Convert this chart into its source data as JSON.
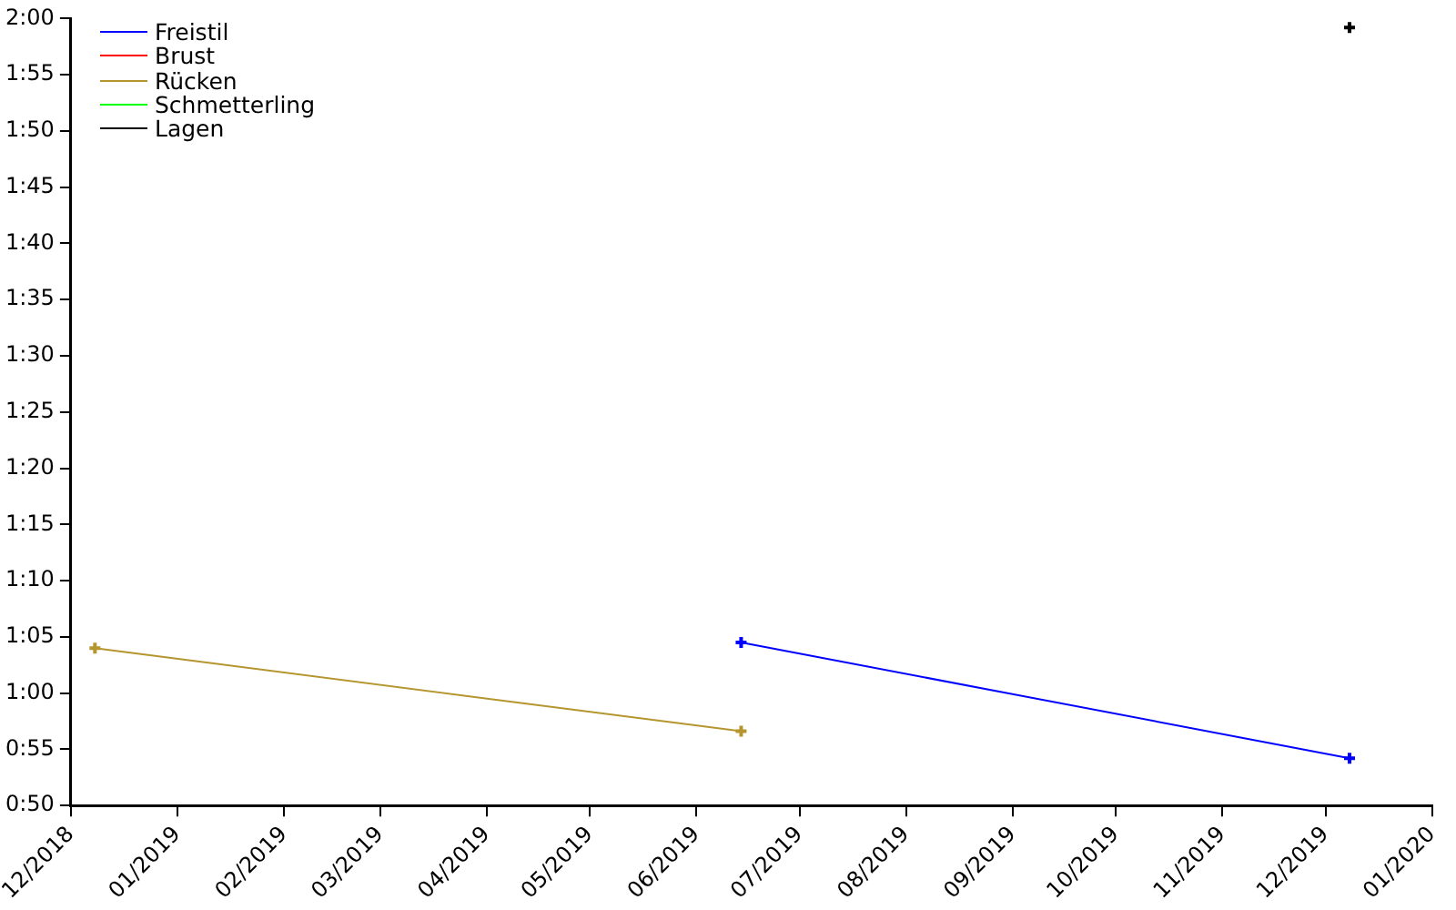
{
  "chart_data": {
    "type": "line",
    "legend": "top left",
    "grid": false,
    "marker": "cross",
    "line_style": "solid",
    "xlim": [
      "2018-12-01",
      "2020-01-01"
    ],
    "xticks": [
      {
        "value": "2018-12-01",
        "label": "12/2018"
      },
      {
        "value": "2019-01-01",
        "label": "01/2019"
      },
      {
        "value": "2019-02-01",
        "label": "02/2019"
      },
      {
        "value": "2019-03-01",
        "label": "03/2019"
      },
      {
        "value": "2019-04-01",
        "label": "04/2019"
      },
      {
        "value": "2019-05-01",
        "label": "05/2019"
      },
      {
        "value": "2019-06-01",
        "label": "06/2019"
      },
      {
        "value": "2019-07-01",
        "label": "07/2019"
      },
      {
        "value": "2019-08-01",
        "label": "08/2019"
      },
      {
        "value": "2019-09-01",
        "label": "09/2019"
      },
      {
        "value": "2019-10-01",
        "label": "10/2019"
      },
      {
        "value": "2019-11-01",
        "label": "11/2019"
      },
      {
        "value": "2019-12-01",
        "label": "12/2019"
      },
      {
        "value": "2020-01-01",
        "label": "01/2020"
      }
    ],
    "ylim": [
      50,
      120
    ],
    "yticks": [
      {
        "value": 50,
        "label": "0:50"
      },
      {
        "value": 55,
        "label": "0:55"
      },
      {
        "value": 60,
        "label": "1:00"
      },
      {
        "value": 65,
        "label": "1:05"
      },
      {
        "value": 70,
        "label": "1:10"
      },
      {
        "value": 75,
        "label": "1:15"
      },
      {
        "value": 80,
        "label": "1:20"
      },
      {
        "value": 85,
        "label": "1:25"
      },
      {
        "value": 90,
        "label": "1:30"
      },
      {
        "value": 95,
        "label": "1:35"
      },
      {
        "value": 100,
        "label": "1:40"
      },
      {
        "value": 105,
        "label": "1:45"
      },
      {
        "value": 110,
        "label": "1:50"
      },
      {
        "value": 115,
        "label": "1:55"
      },
      {
        "value": 120,
        "label": "2:00"
      }
    ],
    "series": [
      {
        "name": "Freistil",
        "color": "#0000ff",
        "x": [
          "2019-06-14",
          "2019-12-08"
        ],
        "values": [
          64.5,
          54.2
        ]
      },
      {
        "name": "Brust",
        "color": "#ff0000"
      },
      {
        "name": "Rücken",
        "color": "#b5952e",
        "x": [
          "2018-12-08",
          "2019-06-14"
        ],
        "values": [
          64.0,
          56.6
        ]
      },
      {
        "name": "Schmetterling",
        "color": "#00ff00"
      },
      {
        "name": "Lagen",
        "color": "#000000",
        "x": [
          "2019-12-08"
        ],
        "values": [
          119.2
        ]
      }
    ]
  }
}
